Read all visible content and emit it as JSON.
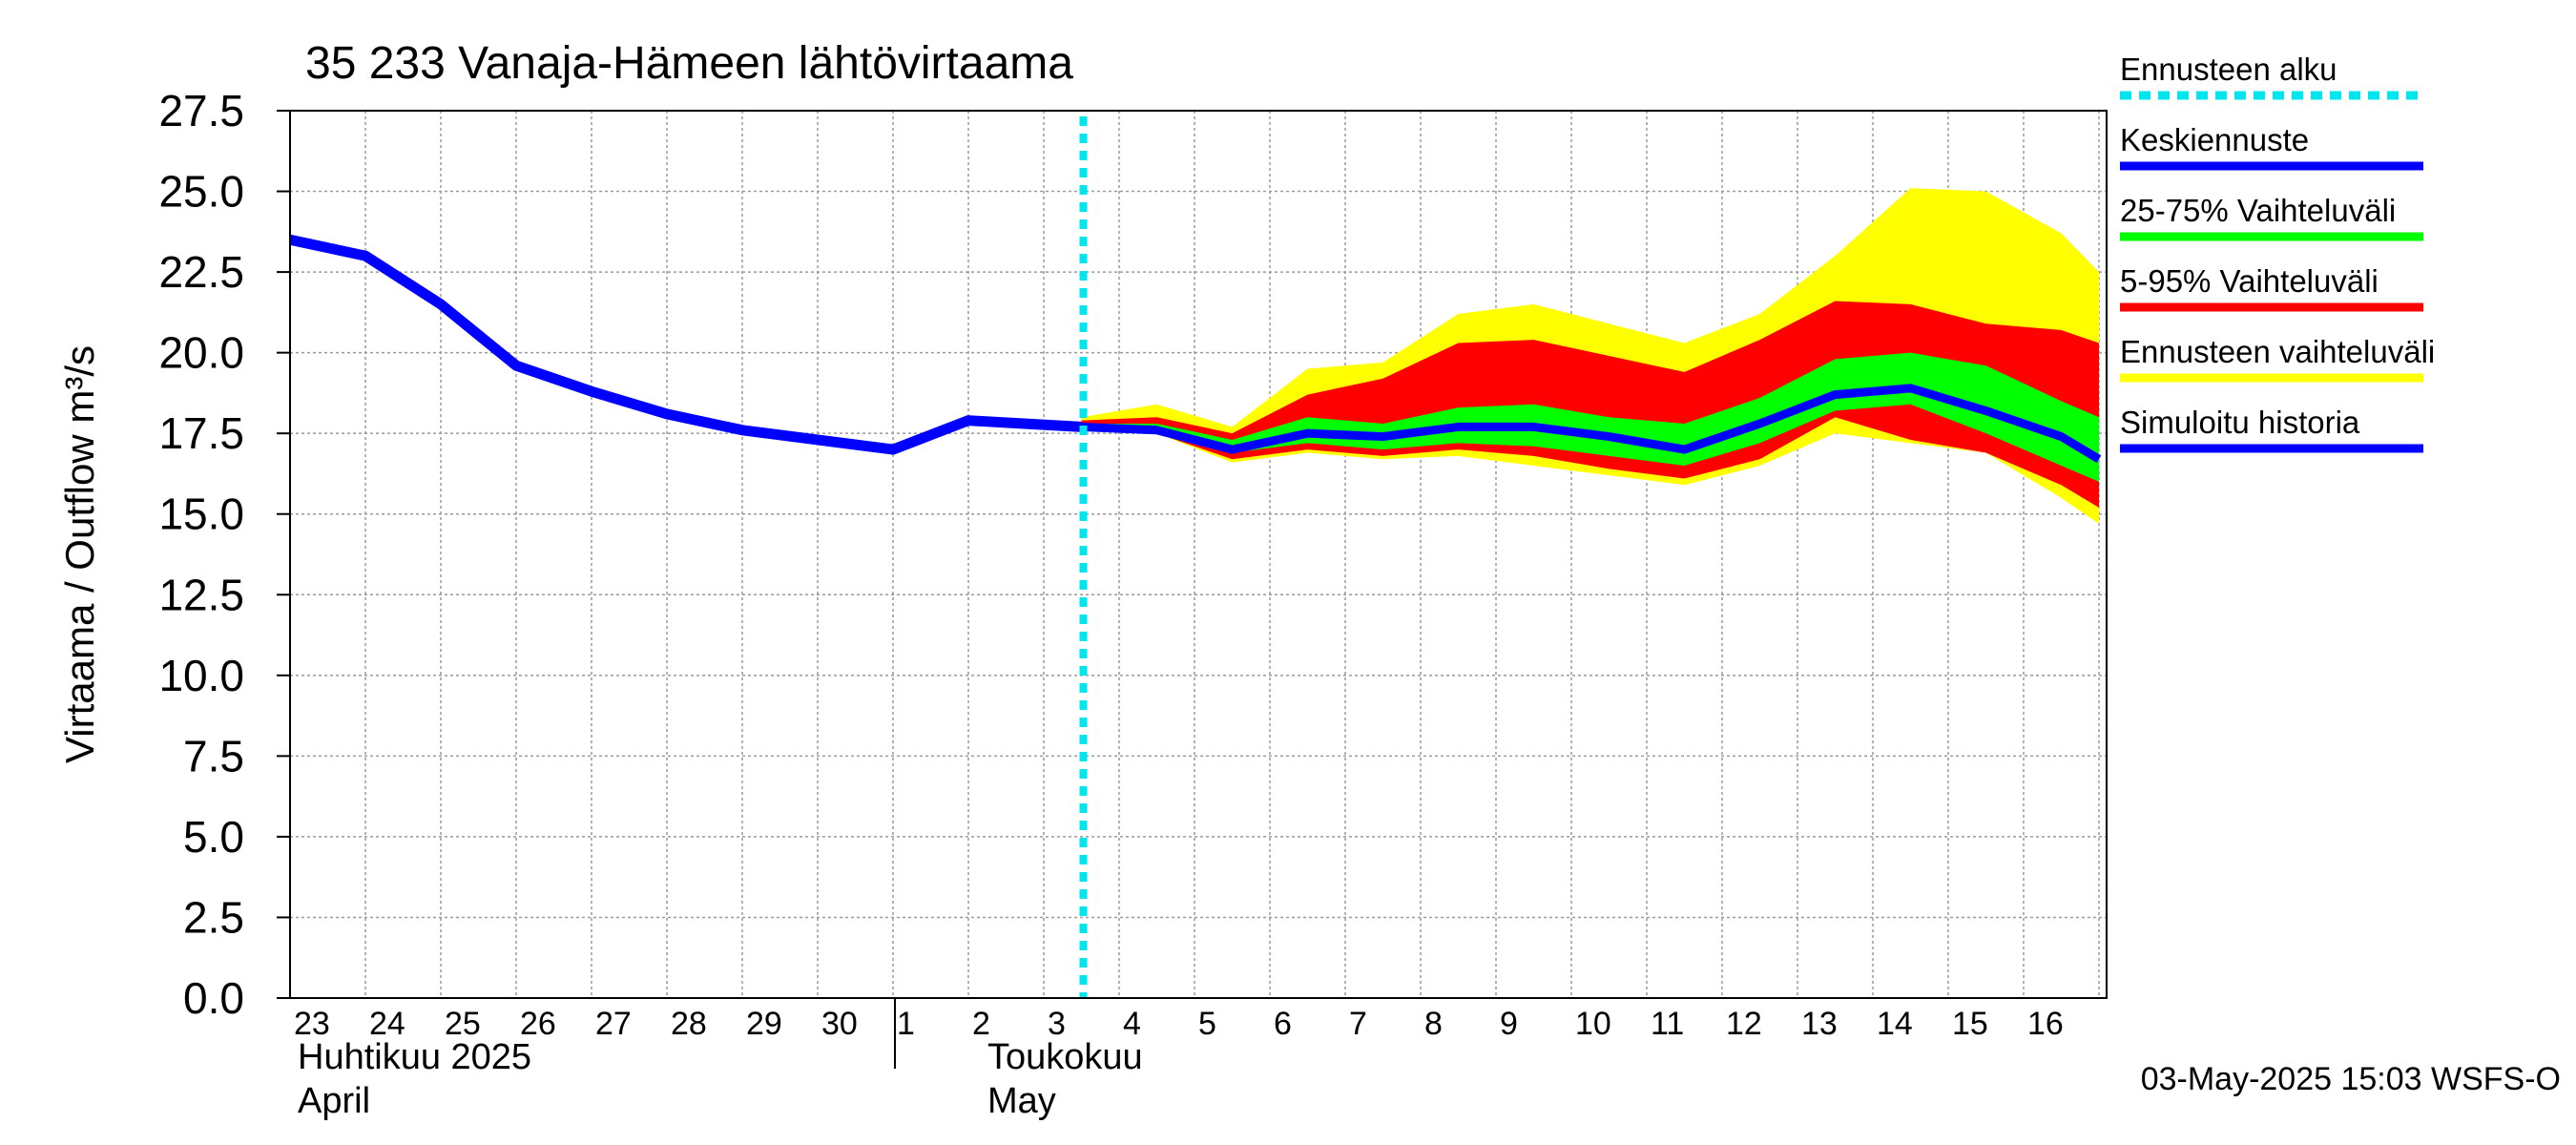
{
  "chart_data": {
    "type": "area",
    "title": "35 233 Vanaja-Hämeen lähtövirtaama",
    "ylabel": "Virtaama / Outflow    m³/s",
    "ylim": [
      0,
      27.5
    ],
    "yticks": [
      "0.0",
      "2.5",
      "5.0",
      "7.5",
      "10.0",
      "12.5",
      "15.0",
      "17.5",
      "20.0",
      "22.5",
      "25.0",
      "27.5"
    ],
    "x_day_labels": [
      "23",
      "24",
      "25",
      "26",
      "27",
      "28",
      "29",
      "30",
      "1",
      "2",
      "3",
      "4",
      "5",
      "6",
      "7",
      "8",
      "9",
      "10",
      "11",
      "12",
      "13",
      "14",
      "15",
      "16"
    ],
    "month_labels": [
      {
        "fi": "Huhtikuu  2025",
        "en": "April"
      },
      {
        "fi": "Toukokuu",
        "en": "May"
      }
    ],
    "forecast_start_day": 10.5,
    "history": {
      "name": "Simuloitu historia",
      "color": "#0000ff",
      "x": [
        0,
        1,
        2,
        3,
        4,
        5,
        6,
        7,
        8,
        9,
        10.5
      ],
      "values": [
        23.5,
        23.0,
        21.5,
        19.6,
        18.8,
        18.1,
        17.6,
        17.3,
        17.0,
        17.9,
        17.7
      ]
    },
    "forecast_x": [
      10.5,
      11.5,
      12.5,
      13.5,
      14.5,
      15.5,
      16.5,
      17.5,
      18.5,
      19.5,
      20.5,
      21.5,
      22.5,
      23.5,
      24.0
    ],
    "series": [
      {
        "name": "Ennusteen vaihteluväli",
        "color": "#ffff00",
        "low": [
          17.6,
          17.5,
          16.6,
          16.9,
          16.7,
          16.8,
          16.5,
          16.2,
          15.9,
          16.5,
          17.5,
          17.2,
          16.9,
          15.5,
          14.7
        ],
        "high": [
          18.0,
          18.4,
          17.7,
          19.5,
          19.7,
          21.2,
          21.5,
          20.9,
          20.3,
          21.2,
          23.0,
          25.1,
          25.0,
          23.7,
          22.5
        ]
      },
      {
        "name": "5-95% Vaihteluväli",
        "color": "#ff0000",
        "low": [
          17.6,
          17.5,
          16.7,
          17.0,
          16.8,
          17.0,
          16.8,
          16.4,
          16.1,
          16.7,
          18.0,
          17.3,
          16.9,
          15.9,
          15.2
        ],
        "high": [
          17.9,
          18.0,
          17.5,
          18.7,
          19.2,
          20.3,
          20.4,
          19.9,
          19.4,
          20.4,
          21.6,
          21.5,
          20.9,
          20.7,
          20.3
        ]
      },
      {
        "name": "25-75% Vaihteluväli",
        "color": "#00ff00",
        "low": [
          17.7,
          17.6,
          16.9,
          17.2,
          17.0,
          17.2,
          17.1,
          16.8,
          16.5,
          17.2,
          18.2,
          18.4,
          17.5,
          16.5,
          16.0
        ],
        "high": [
          17.8,
          17.8,
          17.3,
          18.0,
          17.8,
          18.3,
          18.4,
          18.0,
          17.8,
          18.6,
          19.8,
          20.0,
          19.6,
          18.5,
          18.0
        ]
      },
      {
        "name": "Keskiennuste",
        "color": "#0000ff",
        "values": [
          17.7,
          17.6,
          17.0,
          17.5,
          17.4,
          17.7,
          17.7,
          17.4,
          17.0,
          17.8,
          18.7,
          18.9,
          18.2,
          17.4,
          16.7
        ]
      }
    ],
    "legend": [
      {
        "label": "Ennusteen alku",
        "color": "#00e5ee",
        "style": "dashed"
      },
      {
        "label": "Keskiennuste",
        "color": "#0000ff",
        "style": "line"
      },
      {
        "label": "25-75% Vaihteluväli",
        "color": "#00ff00",
        "style": "line"
      },
      {
        "label": "5-95% Vaihteluväli",
        "color": "#ff0000",
        "style": "line"
      },
      {
        "label": "Ennusteen vaihteluväli",
        "color": "#ffff00",
        "style": "line"
      },
      {
        "label": "Simuloitu historia",
        "color": "#0000ff",
        "style": "line"
      }
    ],
    "footer": "03-May-2025 15:03 WSFS-O"
  }
}
